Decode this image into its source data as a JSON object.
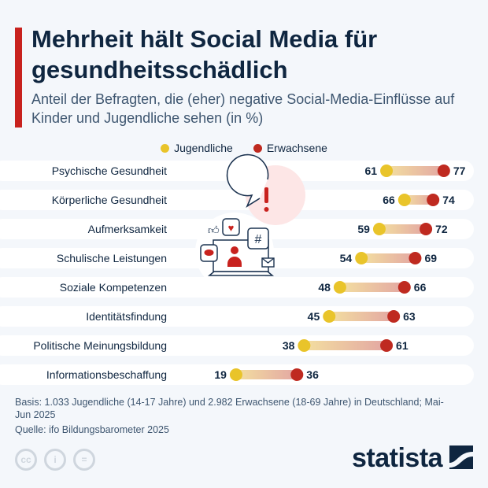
{
  "header": {
    "title": "Mehrheit hält Social Media für gesundheitsschädlich",
    "subtitle": "Anteil der Befragten, die (eher) negative Social-Media-Einflüsse auf Kinder und Jugendliche sehen (in %)"
  },
  "chart_data": {
    "type": "dumbbell",
    "categories": [
      "Psychische Gesundheit",
      "Körperliche Gesundheit",
      "Aufmerksamkeit",
      "Schulische Leistungen",
      "Soziale Kompetenzen",
      "Identitätsfindung",
      "Politische Meinungsbildung",
      "Informationsbeschaffung"
    ],
    "series": [
      {
        "name": "Jugendliche",
        "color": "#e9c42a",
        "values": [
          61,
          66,
          59,
          54,
          48,
          45,
          38,
          19
        ]
      },
      {
        "name": "Erwachsene",
        "color": "#bf2a20",
        "values": [
          77,
          74,
          72,
          69,
          66,
          63,
          61,
          36
        ]
      }
    ],
    "legend_position": "top",
    "grid": false
  },
  "footer": {
    "basis": "Basis: 1.033 Jugendliche (14-17 Jahre) und 2.982 Erwachsene (18-69 Jahre) in Deutschland; Mai-Jun 2025",
    "source": "Quelle: ifo Bildungsbarometer 2025"
  },
  "branding": {
    "logo": "statista",
    "license_icons": [
      "cc-icon",
      "by-icon",
      "nd-icon"
    ]
  }
}
